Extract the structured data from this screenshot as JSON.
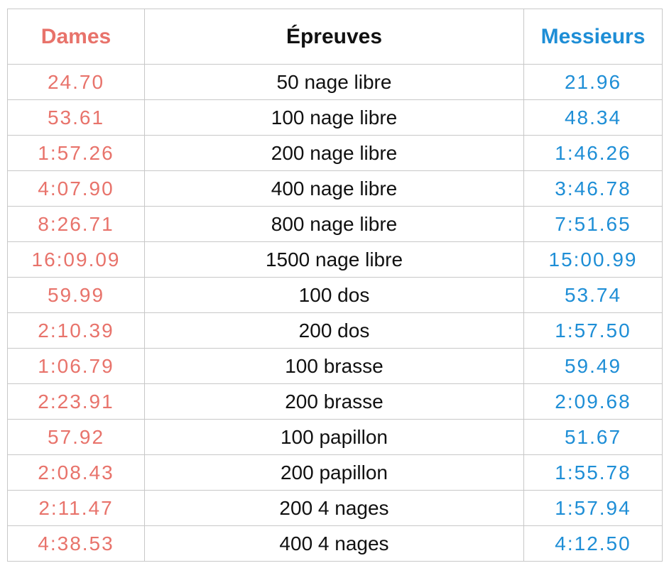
{
  "header": {
    "dames": "Dames",
    "epreuves": "Épreuves",
    "messieurs": "Messieurs"
  },
  "colors": {
    "dames": "#e8736b",
    "messieurs": "#1e8ed6",
    "epreuves": "#111111",
    "grid": "#c8c8c8"
  },
  "rows": [
    {
      "dames": "24.70",
      "event": "50 nage libre",
      "messieurs": "21.96"
    },
    {
      "dames": "53.61",
      "event": "100 nage libre",
      "messieurs": "48.34"
    },
    {
      "dames": "1:57.26",
      "event": "200 nage libre",
      "messieurs": "1:46.26"
    },
    {
      "dames": "4:07.90",
      "event": "400 nage libre",
      "messieurs": "3:46.78"
    },
    {
      "dames": "8:26.71",
      "event": "800 nage libre",
      "messieurs": "7:51.65"
    },
    {
      "dames": "16:09.09",
      "event": "1500 nage libre",
      "messieurs": "15:00.99"
    },
    {
      "dames": "59.99",
      "event": "100 dos",
      "messieurs": "53.74"
    },
    {
      "dames": "2:10.39",
      "event": "200 dos",
      "messieurs": "1:57.50"
    },
    {
      "dames": "1:06.79",
      "event": "100 brasse",
      "messieurs": "59.49"
    },
    {
      "dames": "2:23.91",
      "event": "200 brasse",
      "messieurs": "2:09.68"
    },
    {
      "dames": "57.92",
      "event": "100 papillon",
      "messieurs": "51.67"
    },
    {
      "dames": "2:08.43",
      "event": "200 papillon",
      "messieurs": "1:55.78"
    },
    {
      "dames": "2:11.47",
      "event": "200 4 nages",
      "messieurs": "1:57.94"
    },
    {
      "dames": "4:38.53",
      "event": "400 4 nages",
      "messieurs": "4:12.50"
    }
  ]
}
